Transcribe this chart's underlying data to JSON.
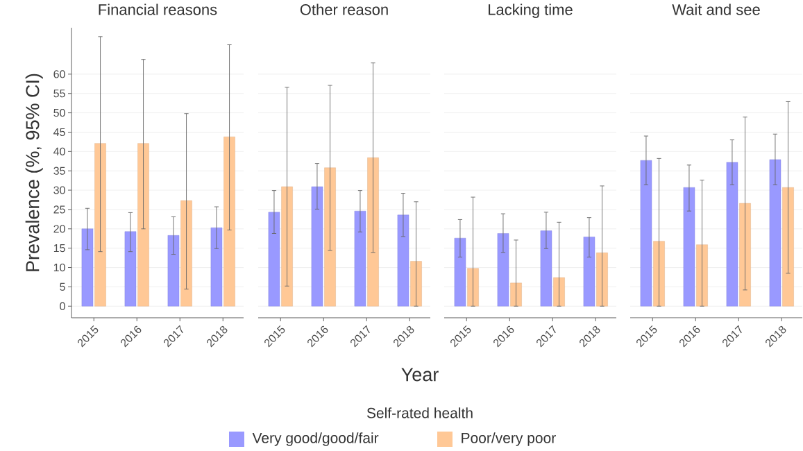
{
  "chart_data": [
    {
      "type": "bar",
      "title": "Financial reasons",
      "ylabel": "Prevalence (%, 95% CI)",
      "legend_title": "Self-rated health",
      "legend": "bottom",
      "grid": "y",
      "categories": [
        "2015",
        "2016",
        "2017",
        "2018"
      ],
      "ylim": [
        -3,
        72
      ],
      "yticks": [
        0,
        5,
        10,
        15,
        20,
        25,
        30,
        35,
        40,
        45,
        50,
        55,
        60
      ],
      "series": [
        {
          "name": "Very good/good/fair",
          "color": "#9999ff",
          "values": [
            20.0,
            19.3,
            18.3,
            20.3
          ],
          "errors": [
            [
              14.6,
              25.3
            ],
            [
              14.1,
              24.2
            ],
            [
              13.4,
              23.1
            ],
            [
              14.9,
              25.7
            ]
          ]
        },
        {
          "name": "Poor/very poor",
          "color": "#ffc896",
          "values": [
            42.1,
            42.1,
            27.3,
            43.8
          ],
          "errors": [
            [
              14.1,
              69.7
            ],
            [
              20.0,
              63.8
            ],
            [
              4.4,
              49.8
            ],
            [
              19.7,
              67.6
            ]
          ]
        }
      ]
    },
    {
      "type": "bar",
      "title": "Other reason",
      "xlabel": "Year",
      "grid": "y",
      "tick_labels": "x",
      "categories": [
        "2015",
        "2016",
        "2017",
        "2018"
      ],
      "yticks": [
        0,
        5,
        10,
        15,
        20,
        25,
        30,
        35,
        40,
        45,
        50,
        55,
        60
      ],
      "series": [
        {
          "color": "#9999ff",
          "values": [
            24.3,
            30.9,
            24.6,
            23.6
          ],
          "errors": [
            [
              18.8,
              29.9
            ],
            [
              25.1,
              36.9
            ],
            [
              19.2,
              29.9
            ],
            [
              18.0,
              29.2
            ]
          ]
        },
        {
          "color": "#ffc896",
          "values": [
            30.9,
            35.8,
            38.4,
            11.6
          ],
          "errors": [
            [
              5.2,
              56.6
            ],
            [
              14.4,
              57.1
            ],
            [
              13.9,
              62.9
            ],
            [
              0,
              27.0
            ]
          ]
        }
      ]
    },
    {
      "type": "bar",
      "title": "Lacking time",
      "grid": "y",
      "tick_labels": "x",
      "categories": [
        "2015",
        "2016",
        "2017",
        "2018"
      ],
      "yticks": [
        0,
        5,
        10,
        15,
        20,
        25,
        30,
        35,
        40,
        45,
        50,
        55,
        60
      ],
      "series": [
        {
          "color": "#9999ff",
          "values": [
            17.6,
            18.8,
            19.5,
            17.9
          ],
          "errors": [
            [
              12.7,
              22.4
            ],
            [
              13.9,
              23.9
            ],
            [
              14.9,
              24.3
            ],
            [
              12.7,
              22.9
            ]
          ]
        },
        {
          "color": "#ffc896",
          "values": [
            9.8,
            6.0,
            7.4,
            13.8
          ],
          "errors": [
            [
              0,
              28.2
            ],
            [
              0,
              17.1
            ],
            [
              0,
              21.7
            ],
            [
              0,
              31.1
            ]
          ]
        }
      ]
    },
    {
      "type": "bar",
      "title": "Wait and see",
      "grid": "y",
      "tick_labels": "x",
      "categories": [
        "2015",
        "2016",
        "2017",
        "2018"
      ],
      "yticks": [
        0,
        5,
        10,
        15,
        20,
        25,
        30,
        35,
        40,
        45,
        50,
        55,
        60
      ],
      "series": [
        {
          "color": "#9999ff",
          "values": [
            37.7,
            30.7,
            37.2,
            37.9
          ],
          "errors": [
            [
              31.4,
              44.0
            ],
            [
              24.6,
              36.5
            ],
            [
              31.4,
              43.0
            ],
            [
              31.4,
              44.5
            ]
          ]
        },
        {
          "color": "#ffc896",
          "values": [
            16.8,
            15.9,
            26.6,
            30.7
          ],
          "errors": [
            [
              0,
              38.2
            ],
            [
              0,
              32.6
            ],
            [
              4.2,
              48.9
            ],
            [
              8.5,
              52.9
            ]
          ]
        }
      ]
    }
  ]
}
